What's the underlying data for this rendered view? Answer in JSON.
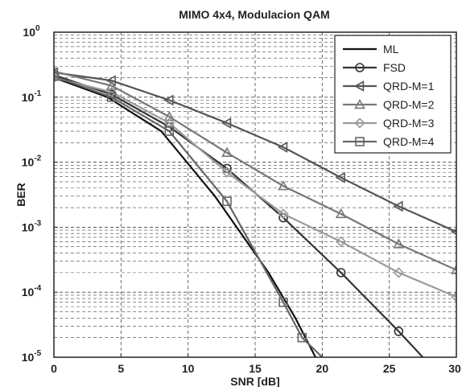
{
  "chart_data": {
    "type": "line",
    "title": "MIMO 4x4, Modulacion QAM",
    "xlabel": "SNR [dB]",
    "ylabel": "BER",
    "xlim": [
      0,
      30
    ],
    "ylim": [
      1e-05,
      1
    ],
    "yscale": "log",
    "grid": true,
    "legend_position": "top-right",
    "x_ticks": [
      "0",
      "5",
      "10",
      "15",
      "20",
      "25",
      "30"
    ],
    "series": [
      {
        "name": "ML",
        "color": "#111111",
        "marker": "none",
        "x": [
          0,
          4,
          8,
          12,
          16,
          18,
          19.5
        ],
        "y": [
          0.2,
          0.1,
          0.03,
          0.003,
          0.0002,
          4e-05,
          1e-05
        ]
      },
      {
        "name": "FSD",
        "color": "#333333",
        "marker": "circle",
        "x": [
          0,
          4.3,
          8.6,
          12.9,
          17.1,
          21.4,
          25.7,
          27.5
        ],
        "y": [
          0.22,
          0.11,
          0.035,
          0.008,
          0.0014,
          0.0002,
          2.5e-05,
          1e-05
        ]
      },
      {
        "name": "QRD-M=1",
        "color": "#555555",
        "marker": "triangle-left",
        "x": [
          0,
          4.3,
          8.6,
          12.9,
          17.1,
          21.4,
          25.7,
          30
        ],
        "y": [
          0.24,
          0.18,
          0.09,
          0.04,
          0.017,
          0.0058,
          0.0021,
          0.00085
        ]
      },
      {
        "name": "QRD-M=2",
        "color": "#777777",
        "marker": "triangle-up",
        "x": [
          0,
          4.3,
          8.6,
          12.9,
          17.1,
          21.4,
          25.7,
          30
        ],
        "y": [
          0.25,
          0.15,
          0.05,
          0.014,
          0.0043,
          0.0016,
          0.00055,
          0.00022
        ]
      },
      {
        "name": "QRD-M=3",
        "color": "#9a9a9a",
        "marker": "diamond",
        "x": [
          0,
          4.3,
          8.6,
          12.9,
          17.1,
          21.4,
          25.7,
          30
        ],
        "y": [
          0.2,
          0.12,
          0.04,
          0.007,
          0.0016,
          0.0006,
          0.0002,
          8.5e-05
        ]
      },
      {
        "name": "QRD-M=4",
        "color": "#666666",
        "marker": "square",
        "x": [
          0,
          4.3,
          8.6,
          12.9,
          17.1,
          18.5,
          20
        ],
        "y": [
          0.21,
          0.1,
          0.03,
          0.0025,
          7e-05,
          2e-05,
          1e-05
        ]
      }
    ]
  }
}
